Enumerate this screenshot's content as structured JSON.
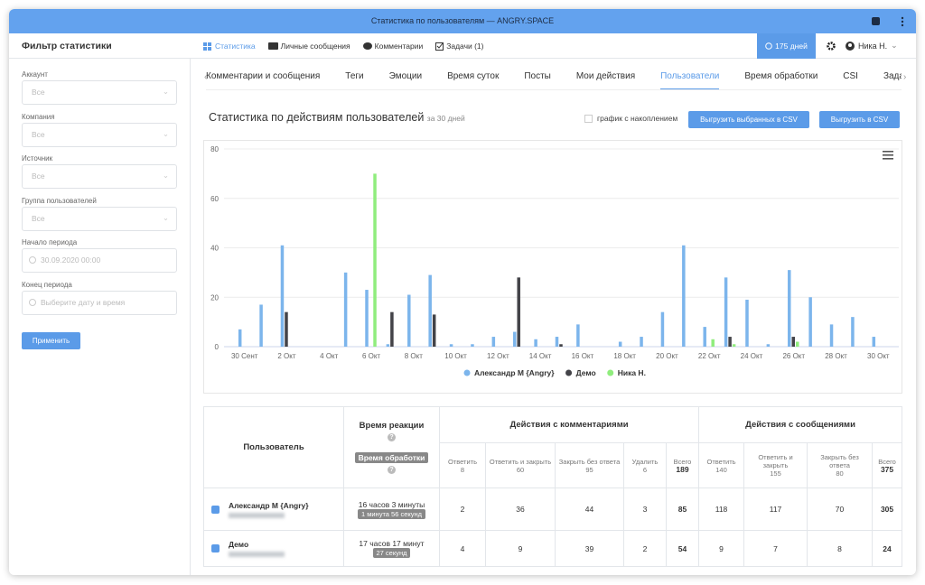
{
  "window_title": "Статистика по пользователям — ANGRY.SPACE",
  "header": {
    "title": "Фильтр статистики",
    "nav": [
      "Статистика",
      "Личные сообщения",
      "Комментарии",
      "Задачи (1)"
    ],
    "period": "175 дней",
    "user": "Ника Н."
  },
  "filters": [
    {
      "label": "Аккаунт",
      "value": "Все"
    },
    {
      "label": "Компания",
      "value": "Все"
    },
    {
      "label": "Источник",
      "value": "Все"
    },
    {
      "label": "Группа пользователей",
      "value": "Все"
    },
    {
      "label": "Начало периода",
      "value": "30.09.2020 00:00"
    },
    {
      "label": "Конец периода",
      "placeholder": "Выберите дату и время"
    }
  ],
  "apply": "Применить",
  "tabs": [
    "Комментарии и сообщения",
    "Теги",
    "Эмоции",
    "Время суток",
    "Посты",
    "Мои действия",
    "Пользователи",
    "Время обработки",
    "CSI",
    "Зада"
  ],
  "active_tab": 6,
  "section": {
    "title": "Статистика по действиям пользователей",
    "period": "за 30 дней",
    "cumulative": "график с накоплением",
    "buttons": [
      "Выгрузить выбранных в CSV",
      "Выгрузить в CSV"
    ]
  },
  "chart_data": {
    "type": "bar",
    "categories": [
      "30 Сент",
      null,
      "2 Окт",
      null,
      "4 Окт",
      null,
      "6 Окт",
      null,
      "8 Окт",
      null,
      "10 Окт",
      null,
      "12 Окт",
      null,
      "14 Окт",
      null,
      "16 Окт",
      null,
      "18 Окт",
      null,
      "20 Окт",
      null,
      "22 Окт",
      null,
      "24 Окт",
      null,
      "26 Окт",
      null,
      "28 Окт",
      null,
      "30 Окт"
    ],
    "series": [
      {
        "name": "Александр М {Angry}",
        "color": "#7cb5ec",
        "values": [
          7,
          17,
          41,
          0,
          0,
          30,
          23,
          1,
          21,
          29,
          1,
          1,
          4,
          6,
          3,
          4,
          9,
          0,
          2,
          4,
          14,
          41,
          8,
          28,
          19,
          1,
          31,
          20,
          9,
          12,
          4
        ]
      },
      {
        "name": "Демо",
        "color": "#434348",
        "values": [
          0,
          0,
          14,
          0,
          0,
          0,
          0,
          14,
          0,
          13,
          0,
          0,
          0,
          28,
          0,
          1,
          0,
          0,
          0,
          0,
          0,
          0,
          0,
          4,
          0,
          0,
          4,
          0,
          0,
          0,
          0
        ]
      },
      {
        "name": "Ника Н.",
        "color": "#90ed7d",
        "values": [
          0,
          0,
          0,
          0,
          0,
          0,
          70,
          0,
          0,
          0,
          0,
          0,
          0,
          0,
          0,
          0,
          0,
          0,
          0,
          0,
          0,
          0,
          3,
          1,
          0,
          0,
          2,
          0,
          0,
          0,
          0
        ]
      }
    ],
    "ylim": [
      0,
      80
    ],
    "yticks": [
      0,
      20,
      40,
      60,
      80
    ],
    "grid": true,
    "legend": "bottom"
  },
  "table": {
    "headers": {
      "user": "Пользователь",
      "reaction": "Время реакции",
      "processing": "Время обработки",
      "comments": "Действия с комментариями",
      "messages": "Действия с сообщениями"
    },
    "comment_columns": [
      {
        "name": "Ответить",
        "count": 8
      },
      {
        "name": "Ответить и закрыть",
        "count": 60
      },
      {
        "name": "Закрыть без ответа",
        "count": 95
      },
      {
        "name": "Удалить",
        "count": 6
      },
      {
        "name": "Всего",
        "count": 189
      }
    ],
    "message_columns": [
      {
        "name": "Ответить",
        "count": 140
      },
      {
        "name": "Ответить и закрыть",
        "count": 155
      },
      {
        "name": "Закрыть без ответа",
        "count": 80
      },
      {
        "name": "Всего",
        "count": 375
      }
    ],
    "rows": [
      {
        "name": "Александр М {Angry}",
        "reaction": "16 часов 3 минуты",
        "processing": "1 минута 56 секунд",
        "comments": [
          2,
          36,
          44,
          3,
          85
        ],
        "messages": [
          118,
          117,
          70,
          305
        ]
      },
      {
        "name": "Демо",
        "reaction": "17 часов 17 минут",
        "processing": "27 секунд",
        "comments": [
          4,
          9,
          39,
          2,
          54
        ],
        "messages": [
          9,
          7,
          8,
          24
        ]
      }
    ]
  }
}
